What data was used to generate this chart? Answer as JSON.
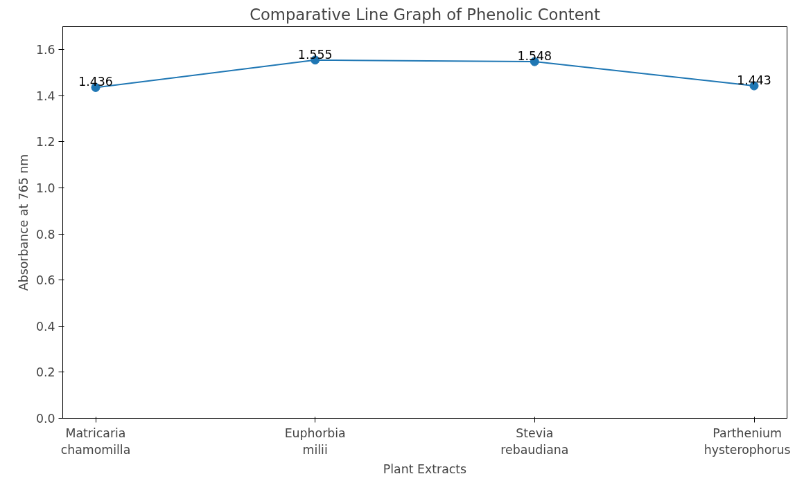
{
  "chart_data": {
    "type": "line",
    "title": "Comparative Line Graph of Phenolic Content",
    "xlabel": "Plant Extracts",
    "ylabel": "Absorbance at 765 nm",
    "categories": [
      "Matricaria\nchamomilla",
      "Euphorbia\nmilii",
      "Stevia\nrebaudiana",
      "Parthenium\nhysterophorus"
    ],
    "series": [
      {
        "color": "#1f77b4",
        "values": [
          1.436,
          1.555,
          1.548,
          1.443
        ]
      }
    ],
    "ylim": [
      0,
      1.7
    ],
    "yticks": [
      {
        "value": 0,
        "label": "0.0"
      },
      0.2,
      0.4,
      0.6,
      0.8,
      {
        "value": 1,
        "label": "1.0"
      },
      1.2,
      1.4,
      1.6
    ],
    "data_labels": true,
    "marker": "circle",
    "grid": false,
    "line_style": "solid"
  }
}
